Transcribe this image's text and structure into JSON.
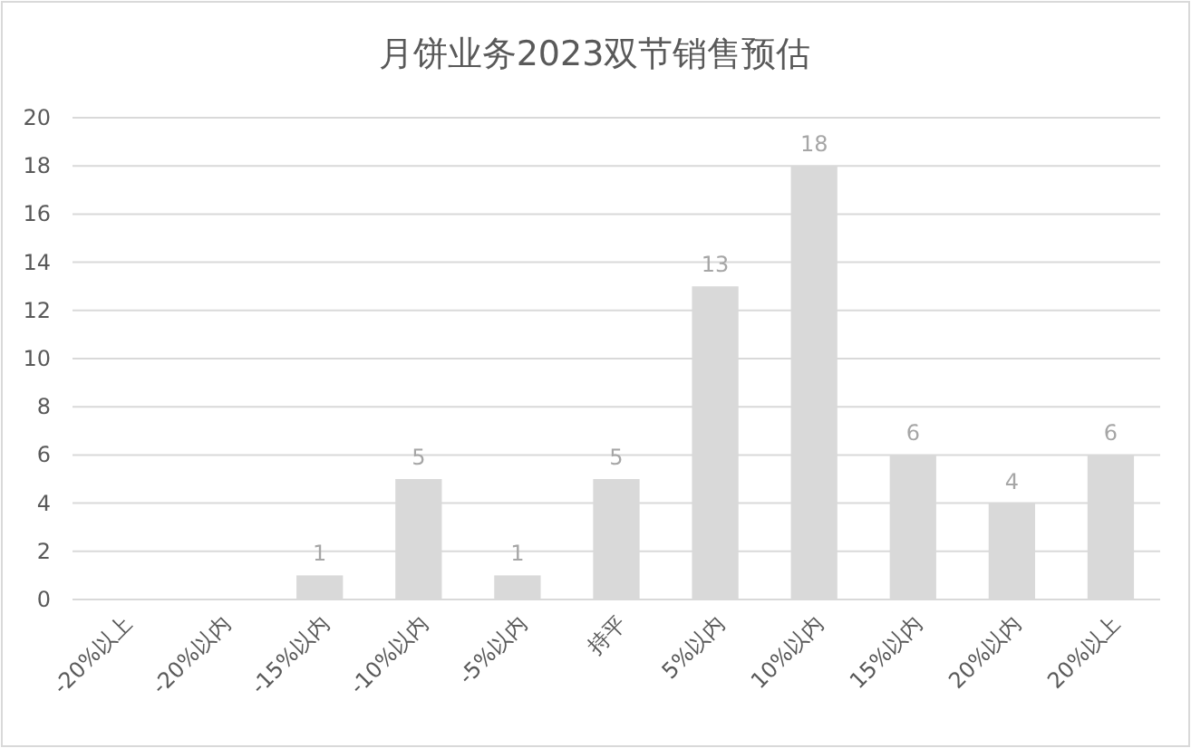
{
  "chart_data": {
    "type": "bar",
    "title": "月饼业务2023双节销售预估",
    "categories": [
      "-20%以上",
      "-20%以内",
      "-15%以内",
      "-10%以内",
      "-5%以内",
      "持平",
      "5%以内",
      "10%以内",
      "15%以内",
      "20%以内",
      "20%以上"
    ],
    "values": [
      0,
      0,
      1,
      5,
      1,
      5,
      13,
      18,
      6,
      4,
      6
    ],
    "value_labels": [
      null,
      null,
      "1",
      "5",
      "1",
      "5",
      "13",
      "18",
      "6",
      "4",
      "6"
    ],
    "color": "#d9d9d9",
    "ylim": [
      0,
      20
    ],
    "yticks": [
      0,
      2,
      4,
      6,
      8,
      10,
      12,
      14,
      16,
      18,
      20
    ],
    "grid": "y"
  }
}
